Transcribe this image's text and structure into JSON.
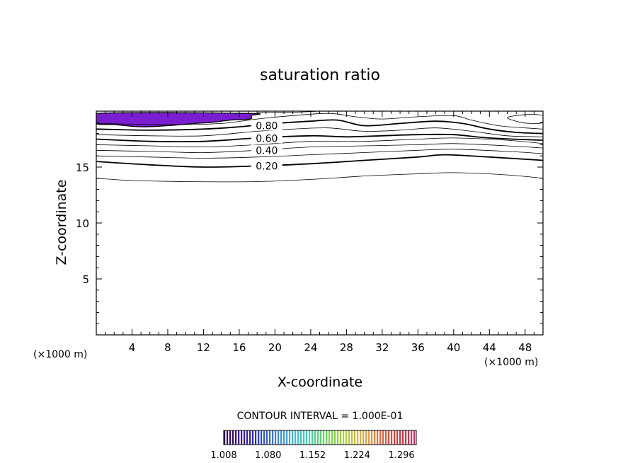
{
  "chart_data": {
    "type": "contour",
    "title": "saturation ratio",
    "xlabel": "X-coordinate",
    "ylabel": "Z-coordinate",
    "x_unit_left": "(×1000 m)",
    "x_unit_right": "(×1000 m)",
    "xlim": [
      0,
      50
    ],
    "ylim": [
      0,
      20
    ],
    "x_ticks": [
      4,
      8,
      12,
      16,
      20,
      24,
      28,
      32,
      36,
      40,
      44,
      48
    ],
    "y_ticks": [
      5,
      10,
      15
    ],
    "contour_interval_label": "CONTOUR INTERVAL = 1.000E-01",
    "contour_labels": [
      "0.80",
      "0.60",
      "0.40",
      "0.20"
    ],
    "contour_levels": [
      0.1,
      0.2,
      0.3,
      0.4,
      0.5,
      0.6,
      0.7,
      0.8,
      0.9,
      1.0
    ],
    "contours": [
      {
        "level": 0.1,
        "bold": false,
        "points": [
          [
            0,
            14.0
          ],
          [
            4,
            13.8
          ],
          [
            10,
            13.7
          ],
          [
            18,
            13.7
          ],
          [
            24,
            13.9
          ],
          [
            30,
            14.2
          ],
          [
            36,
            14.4
          ],
          [
            40,
            14.5
          ],
          [
            46,
            14.3
          ],
          [
            50,
            14.0
          ]
        ]
      },
      {
        "level": 0.2,
        "bold": true,
        "labeled": true,
        "label_x": 17.5,
        "points": [
          [
            0,
            15.5
          ],
          [
            6,
            15.2
          ],
          [
            12,
            15.0
          ],
          [
            18,
            15.1
          ],
          [
            24,
            15.3
          ],
          [
            30,
            15.6
          ],
          [
            36,
            15.9
          ],
          [
            39,
            16.1
          ],
          [
            44,
            15.9
          ],
          [
            50,
            15.6
          ]
        ]
      },
      {
        "level": 0.3,
        "bold": false,
        "points": [
          [
            0,
            16.0
          ],
          [
            6,
            15.9
          ],
          [
            12,
            15.8
          ],
          [
            18,
            15.9
          ],
          [
            24,
            16.1
          ],
          [
            30,
            16.3
          ],
          [
            36,
            16.5
          ],
          [
            40,
            16.6
          ],
          [
            46,
            16.4
          ],
          [
            50,
            16.2
          ]
        ]
      },
      {
        "level": 0.4,
        "bold": false,
        "labeled": true,
        "label_x": 17.5,
        "points": [
          [
            0,
            16.5
          ],
          [
            6,
            16.4
          ],
          [
            12,
            16.3
          ],
          [
            18,
            16.5
          ],
          [
            24,
            16.8
          ],
          [
            30,
            16.9
          ],
          [
            36,
            17.0
          ],
          [
            40,
            17.1
          ],
          [
            46,
            16.9
          ],
          [
            50,
            16.7
          ]
        ]
      },
      {
        "level": 0.5,
        "bold": false,
        "points": [
          [
            0,
            17.0
          ],
          [
            6,
            16.9
          ],
          [
            12,
            16.8
          ],
          [
            18,
            17.0
          ],
          [
            24,
            17.3
          ],
          [
            30,
            17.3
          ],
          [
            36,
            17.5
          ],
          [
            40,
            17.6
          ],
          [
            46,
            17.4
          ],
          [
            50,
            17.1
          ]
        ]
      },
      {
        "level": 0.6,
        "bold": true,
        "labeled": true,
        "label_x": 17.5,
        "points": [
          [
            0,
            17.5
          ],
          [
            6,
            17.3
          ],
          [
            12,
            17.3
          ],
          [
            18,
            17.6
          ],
          [
            24,
            17.8
          ],
          [
            28,
            17.7
          ],
          [
            32,
            17.8
          ],
          [
            36,
            17.9
          ],
          [
            40,
            17.9
          ],
          [
            44,
            17.6
          ],
          [
            50,
            17.4
          ]
        ]
      },
      {
        "level": 0.7,
        "bold": false,
        "points": [
          [
            0,
            17.9
          ],
          [
            6,
            17.8
          ],
          [
            12,
            17.8
          ],
          [
            18,
            18.2
          ],
          [
            22,
            18.4
          ],
          [
            26,
            18.5
          ],
          [
            30,
            18.2
          ],
          [
            34,
            18.3
          ],
          [
            38,
            18.5
          ],
          [
            42,
            18.2
          ],
          [
            46,
            17.8
          ],
          [
            50,
            17.7
          ]
        ]
      },
      {
        "level": 0.8,
        "bold": true,
        "labeled": true,
        "label_x": 17.5,
        "points": [
          [
            0,
            18.4
          ],
          [
            6,
            18.3
          ],
          [
            12,
            18.4
          ],
          [
            16,
            18.6
          ],
          [
            20,
            18.9
          ],
          [
            24,
            19.1
          ],
          [
            27,
            19.2
          ],
          [
            30,
            18.7
          ],
          [
            34,
            18.9
          ],
          [
            38,
            19.1
          ],
          [
            41,
            18.9
          ],
          [
            44,
            18.4
          ],
          [
            47,
            18.1
          ],
          [
            50,
            18.0
          ]
        ]
      },
      {
        "level": 0.9,
        "bold": false,
        "points": [
          [
            0,
            18.9
          ],
          [
            8,
            18.8
          ],
          [
            14,
            18.9
          ],
          [
            18,
            19.3
          ],
          [
            22,
            19.6
          ],
          [
            26,
            19.8
          ],
          [
            29,
            19.5
          ],
          [
            32,
            19.3
          ],
          [
            36,
            19.5
          ],
          [
            40,
            19.6
          ],
          [
            42,
            19.2
          ],
          [
            45,
            18.7
          ],
          [
            48,
            18.5
          ],
          [
            50,
            18.4
          ]
        ]
      },
      {
        "level": 1.0,
        "bold": false,
        "points": [
          [
            18,
            19.9
          ],
          [
            22,
            19.9
          ],
          [
            25,
            20.0
          ]
        ]
      },
      {
        "level": 1.0,
        "bold": false,
        "closed": true,
        "points": [
          [
            46,
            19.4
          ],
          [
            47.5,
            19.0
          ],
          [
            49,
            18.9
          ],
          [
            50,
            19.0
          ],
          [
            50,
            19.6
          ],
          [
            48.5,
            19.7
          ],
          [
            47,
            19.6
          ]
        ]
      }
    ],
    "shaded_regions": [
      {
        "range": [
          1.008,
          1.04
        ],
        "color": "#7a1ed2",
        "points": [
          [
            0,
            19.8
          ],
          [
            17,
            19.8
          ],
          [
            17.3,
            19.6
          ],
          [
            17.2,
            19.3
          ],
          [
            15,
            19.2
          ],
          [
            13,
            19.0
          ],
          [
            11,
            18.9
          ],
          [
            8,
            18.7
          ],
          [
            5,
            18.6
          ],
          [
            2,
            18.8
          ],
          [
            0,
            18.9
          ]
        ]
      }
    ],
    "colorbar": {
      "tick_labels": [
        "1.008",
        "1.080",
        "1.152",
        "1.224",
        "1.296"
      ],
      "min": 1.008,
      "max": 1.32,
      "colors": [
        "#2a0050",
        "#3a0aa0",
        "#2030d0",
        "#3a70e8",
        "#40a8e0",
        "#40d0c0",
        "#50d870",
        "#88d840",
        "#c0c840",
        "#e8a040",
        "#e86040",
        "#d83838",
        "#c83060"
      ]
    }
  }
}
